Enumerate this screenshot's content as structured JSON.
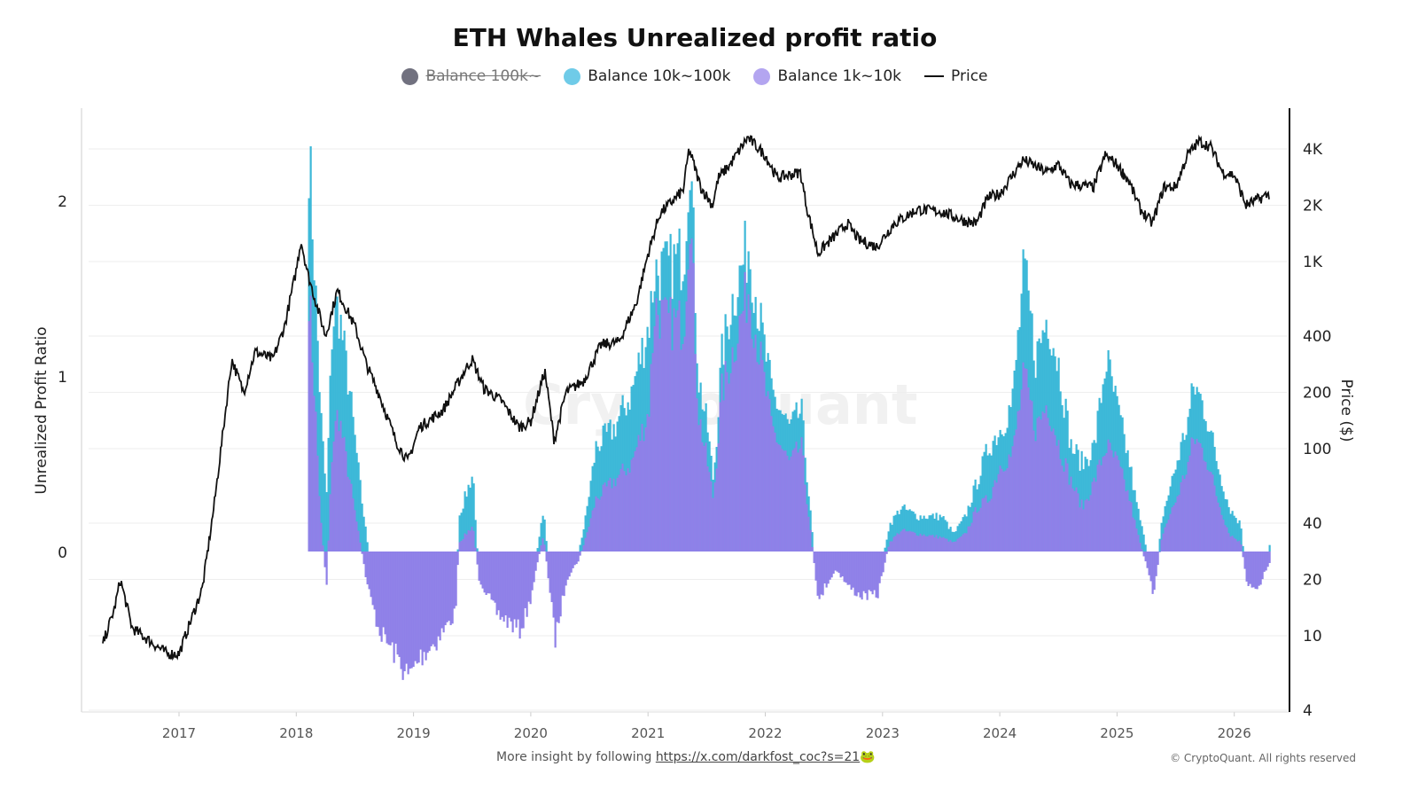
{
  "chart_data": {
    "type": "bar",
    "title": "ETH Whales Unrealized profit ratio",
    "ylabel": "Unrealized Profit Ratio",
    "y2label": "Price ($)",
    "ylim": [
      -0.91,
      2.51
    ],
    "y2lim": [
      4,
      6000
    ],
    "y2scale": "log",
    "yticks": [
      "2",
      "1",
      "0"
    ],
    "y2ticks": [
      "4K",
      "2K",
      "1K",
      "400",
      "200",
      "100",
      "40",
      "20",
      "10",
      "4"
    ],
    "xticks": [
      "2017",
      "2018",
      "2019",
      "2020",
      "2021",
      "2022",
      "2023",
      "2024",
      "2025",
      "2026"
    ],
    "grid": true,
    "legend_placement": "top",
    "legend": [
      {
        "name": "Balance 100k~",
        "color": "#71717f",
        "hidden": true
      },
      {
        "name": "Balance 10k~100k",
        "color": "#6fcbe8"
      },
      {
        "name": "Balance 1k~10k",
        "color": "#b3a5f0"
      },
      {
        "name": "Price",
        "color": "#111111"
      }
    ],
    "colors": {
      "bal_10k_100k": "#3cb8d8",
      "bal_1k_10k": "#8f80e8",
      "price": "#111111"
    },
    "ratio_series_columns": [
      "year",
      "Balance 1k~10k",
      "Balance 10k~100k"
    ],
    "ratio_series": [
      [
        2018.1,
        1.5,
        2.3
      ],
      [
        2018.15,
        0.9,
        1.6
      ],
      [
        2018.2,
        0.2,
        0.8
      ],
      [
        2018.25,
        -0.2,
        0.3
      ],
      [
        2018.3,
        0.6,
        1.3
      ],
      [
        2018.35,
        0.8,
        1.4
      ],
      [
        2018.45,
        0.4,
        0.9
      ],
      [
        2018.55,
        0,
        0.3
      ],
      [
        2018.6,
        -0.2,
        0.05
      ],
      [
        2018.7,
        -0.45,
        -0.45
      ],
      [
        2018.85,
        -0.6,
        -0.6
      ],
      [
        2018.95,
        -0.72,
        -0.72
      ],
      [
        2019.05,
        -0.6,
        -0.6
      ],
      [
        2019.2,
        -0.5,
        -0.5
      ],
      [
        2019.35,
        -0.35,
        -0.35
      ],
      [
        2019.38,
        0.05,
        0.2
      ],
      [
        2019.5,
        0.15,
        0.45
      ],
      [
        2019.55,
        -0.15,
        -0.15
      ],
      [
        2019.7,
        -0.35,
        -0.35
      ],
      [
        2019.9,
        -0.45,
        -0.45
      ],
      [
        2019.98,
        -0.3,
        -0.3
      ],
      [
        2020.1,
        0.1,
        0.25
      ],
      [
        2020.2,
        -0.5,
        -0.5
      ],
      [
        2020.3,
        -0.15,
        -0.15
      ],
      [
        2020.4,
        -0.05,
        0
      ],
      [
        2020.45,
        0.05,
        0.15
      ],
      [
        2020.55,
        0.3,
        0.6
      ],
      [
        2020.7,
        0.4,
        0.7
      ],
      [
        2020.85,
        0.5,
        0.9
      ],
      [
        2021.0,
        0.8,
        1.3
      ],
      [
        2021.05,
        1.4,
        1.6
      ],
      [
        2021.15,
        1.3,
        1.6
      ],
      [
        2021.3,
        1.3,
        1.7
      ],
      [
        2021.35,
        2.0,
        2.35
      ],
      [
        2021.42,
        0.8,
        1.0
      ],
      [
        2021.5,
        0.5,
        0.7
      ],
      [
        2021.55,
        0.3,
        0.4
      ],
      [
        2021.62,
        0.9,
        1.1
      ],
      [
        2021.7,
        1.1,
        1.4
      ],
      [
        2021.85,
        1.5,
        1.75
      ],
      [
        2021.95,
        1.1,
        1.3
      ],
      [
        2022.05,
        0.7,
        0.9
      ],
      [
        2022.2,
        0.5,
        0.7
      ],
      [
        2022.3,
        0.6,
        0.8
      ],
      [
        2022.38,
        0.1,
        0.2
      ],
      [
        2022.45,
        -0.3,
        -0.3
      ],
      [
        2022.5,
        -0.2,
        -0.2
      ],
      [
        2022.6,
        -0.1,
        0
      ],
      [
        2022.7,
        -0.2,
        -0.15
      ],
      [
        2022.8,
        -0.25,
        -0.25
      ],
      [
        2022.95,
        -0.25,
        -0.2
      ],
      [
        2023.05,
        0.05,
        0.15
      ],
      [
        2023.15,
        0.12,
        0.25
      ],
      [
        2023.3,
        0.1,
        0.2
      ],
      [
        2023.5,
        0.08,
        0.2
      ],
      [
        2023.6,
        0.05,
        0.1
      ],
      [
        2023.7,
        0.1,
        0.2
      ],
      [
        2023.8,
        0.25,
        0.4
      ],
      [
        2023.9,
        0.3,
        0.6
      ],
      [
        2024.0,
        0.5,
        0.7
      ],
      [
        2024.1,
        0.55,
        0.85
      ],
      [
        2024.2,
        1.0,
        1.6
      ],
      [
        2024.3,
        0.7,
        1.1
      ],
      [
        2024.4,
        0.85,
        1.35
      ],
      [
        2024.5,
        0.6,
        1.05
      ],
      [
        2024.6,
        0.4,
        0.6
      ],
      [
        2024.7,
        0.25,
        0.5
      ],
      [
        2024.8,
        0.4,
        0.6
      ],
      [
        2024.9,
        0.6,
        1.1
      ],
      [
        2025.0,
        0.5,
        0.8
      ],
      [
        2025.1,
        0.3,
        0.5
      ],
      [
        2025.15,
        0.15,
        0.3
      ],
      [
        2025.25,
        -0.1,
        0
      ],
      [
        2025.3,
        -0.25,
        -0.25
      ],
      [
        2025.38,
        0.1,
        0.2
      ],
      [
        2025.5,
        0.3,
        0.5
      ],
      [
        2025.6,
        0.5,
        0.75
      ],
      [
        2025.65,
        0.65,
        0.95
      ],
      [
        2025.75,
        0.55,
        0.8
      ],
      [
        2025.85,
        0.3,
        0.5
      ],
      [
        2025.95,
        0.1,
        0.25
      ],
      [
        2026.05,
        0.05,
        0.15
      ],
      [
        2026.1,
        -0.2,
        -0.2
      ],
      [
        2026.2,
        -0.2,
        -0.2
      ],
      [
        2026.3,
        -0.05,
        0.05
      ]
    ],
    "price_series_columns": [
      "year",
      "price"
    ],
    "price_series": [
      [
        2016.35,
        9
      ],
      [
        2016.45,
        14
      ],
      [
        2016.5,
        20
      ],
      [
        2016.6,
        11
      ],
      [
        2016.9,
        8
      ],
      [
        2017.0,
        8
      ],
      [
        2017.2,
        18
      ],
      [
        2017.3,
        50
      ],
      [
        2017.45,
        300
      ],
      [
        2017.55,
        200
      ],
      [
        2017.65,
        330
      ],
      [
        2017.8,
        300
      ],
      [
        2017.9,
        450
      ],
      [
        2018.0,
        900
      ],
      [
        2018.04,
        1300
      ],
      [
        2018.1,
        850
      ],
      [
        2018.25,
        400
      ],
      [
        2018.35,
        700
      ],
      [
        2018.5,
        450
      ],
      [
        2018.6,
        280
      ],
      [
        2018.7,
        200
      ],
      [
        2018.85,
        110
      ],
      [
        2018.95,
        85
      ],
      [
        2019.05,
        130
      ],
      [
        2019.25,
        160
      ],
      [
        2019.45,
        270
      ],
      [
        2019.5,
        300
      ],
      [
        2019.6,
        210
      ],
      [
        2019.75,
        180
      ],
      [
        2019.9,
        130
      ],
      [
        2020.0,
        140
      ],
      [
        2020.12,
        260
      ],
      [
        2020.2,
        110
      ],
      [
        2020.3,
        200
      ],
      [
        2020.45,
        230
      ],
      [
        2020.6,
        360
      ],
      [
        2020.75,
        370
      ],
      [
        2020.9,
        600
      ],
      [
        2021.0,
        1100
      ],
      [
        2021.1,
        1800
      ],
      [
        2021.3,
        2400
      ],
      [
        2021.35,
        4000
      ],
      [
        2021.45,
        2500
      ],
      [
        2021.55,
        2000
      ],
      [
        2021.6,
        2800
      ],
      [
        2021.7,
        3300
      ],
      [
        2021.85,
        4600
      ],
      [
        2022.0,
        3700
      ],
      [
        2022.1,
        2800
      ],
      [
        2022.3,
        3000
      ],
      [
        2022.35,
        2000
      ],
      [
        2022.45,
        1100
      ],
      [
        2022.5,
        1200
      ],
      [
        2022.7,
        1600
      ],
      [
        2022.8,
        1300
      ],
      [
        2022.95,
        1200
      ],
      [
        2023.1,
        1600
      ],
      [
        2023.3,
        1900
      ],
      [
        2023.5,
        1850
      ],
      [
        2023.7,
        1650
      ],
      [
        2023.8,
        1600
      ],
      [
        2023.9,
        2200
      ],
      [
        2024.0,
        2300
      ],
      [
        2024.2,
        3500
      ],
      [
        2024.4,
        3000
      ],
      [
        2024.5,
        3300
      ],
      [
        2024.6,
        2600
      ],
      [
        2024.8,
        2500
      ],
      [
        2024.9,
        3700
      ],
      [
        2025.0,
        3300
      ],
      [
        2025.1,
        2700
      ],
      [
        2025.2,
        1900
      ],
      [
        2025.3,
        1600
      ],
      [
        2025.4,
        2500
      ],
      [
        2025.5,
        2500
      ],
      [
        2025.6,
        3700
      ],
      [
        2025.7,
        4400
      ],
      [
        2025.8,
        4100
      ],
      [
        2025.9,
        3000
      ],
      [
        2026.0,
        2900
      ],
      [
        2026.1,
        2000
      ],
      [
        2026.3,
        2300
      ]
    ]
  },
  "watermark": "CryptoQuant",
  "footer": {
    "prefix": "More insight by following ",
    "link": "https://x.com/darkfost_coc?s=21",
    "emoji": "🐸"
  },
  "copyright": "© CryptoQuant. All rights reserved"
}
